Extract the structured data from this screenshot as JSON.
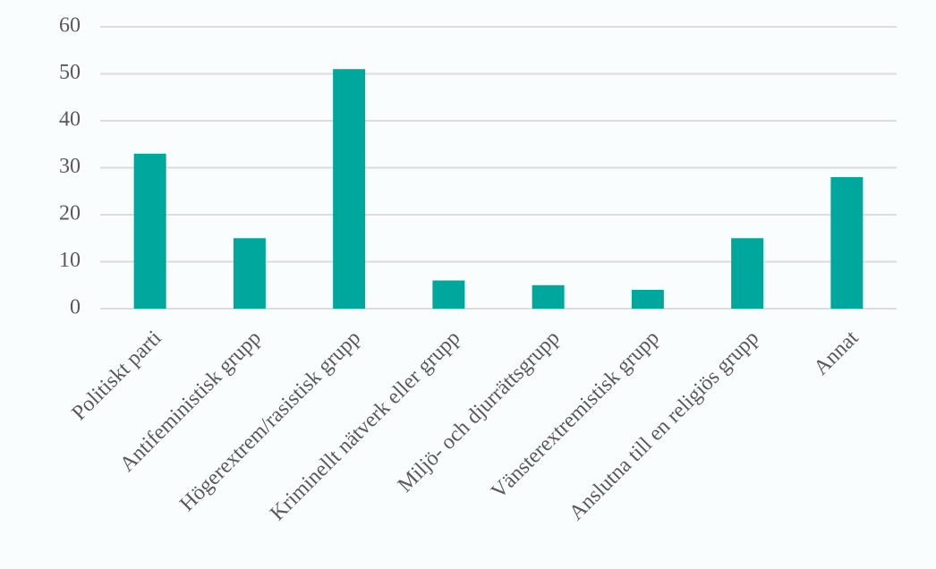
{
  "chart_data": {
    "type": "bar",
    "categories": [
      "Politiskt parti",
      "Antifeministisk grupp",
      "Högerextrem/rasistisk grupp",
      "Kriminellt nätverk eller grupp",
      "Miljö- och djurrättsgrupp",
      "Vänsterextremistisk grupp",
      "Anslutna till en religiös grupp",
      "Annat"
    ],
    "values": [
      33,
      15,
      51,
      6,
      5,
      4,
      15,
      28
    ],
    "color": "#00a79d",
    "ylim": [
      0,
      60
    ],
    "yticks": [
      0,
      10,
      20,
      30,
      40,
      50,
      60
    ],
    "grid": true
  }
}
